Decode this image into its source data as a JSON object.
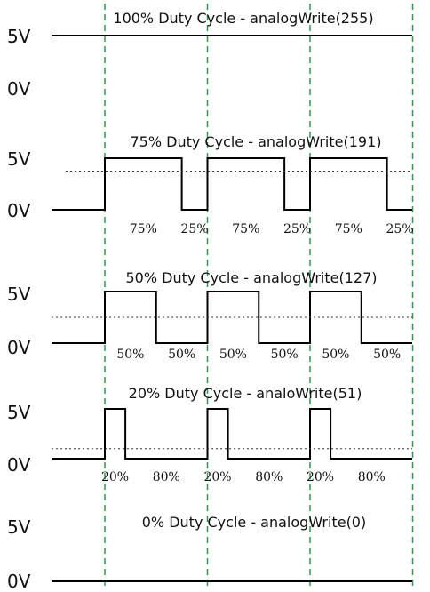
{
  "colors": {
    "signal": "#000000",
    "average": "#333333",
    "guide": "#2e9a4b",
    "text": "#111111"
  },
  "panels": [
    {
      "title": "100% Duty Cycle - analogWrite(255)",
      "high_label": "5V",
      "low_label": "0V",
      "duty": 1.0,
      "periods": 3,
      "pulse_labels": []
    },
    {
      "title": "75% Duty Cycle - analogWrite(191)",
      "high_label": "5V",
      "low_label": "0V",
      "duty": 0.75,
      "periods": 3,
      "pulse_labels": [
        "75%",
        "25%",
        "75%",
        "25%",
        "75%",
        "25%"
      ]
    },
    {
      "title": "50% Duty Cycle - analogWrite(127)",
      "high_label": "5V",
      "low_label": "0V",
      "duty": 0.5,
      "periods": 3,
      "pulse_labels": [
        "50%",
        "50%",
        "50%",
        "50%",
        "50%",
        "50%"
      ]
    },
    {
      "title": "20%  Duty Cycle - analoWrite(51)",
      "high_label": "5V",
      "low_label": "0V",
      "duty": 0.2,
      "periods": 3,
      "pulse_labels": [
        "20%",
        "80%",
        "20%",
        "80%",
        "20%",
        "80%"
      ]
    },
    {
      "title": "0% Duty Cycle - analogWrite(0)",
      "high_label": "5V",
      "low_label": "0V",
      "duty": 0.0,
      "periods": 3,
      "pulse_labels": []
    }
  ]
}
